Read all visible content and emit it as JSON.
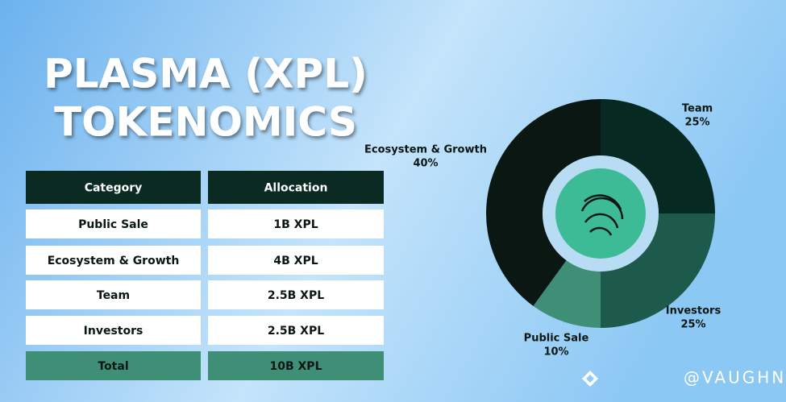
{
  "title": [
    "PLASMA (XPL)",
    "TOKENOMICS"
  ],
  "table": {
    "header": [
      "Category",
      "Allocation"
    ],
    "rows": [
      [
        "Public Sale",
        "1B XPL"
      ],
      [
        "Ecosystem & Growth",
        "4B XPL"
      ],
      [
        "Team",
        "2.5B XPL"
      ],
      [
        "Investors",
        "2.5B XPL"
      ]
    ],
    "total": [
      "Total",
      "10B XPL"
    ]
  },
  "chart_data": {
    "type": "pie",
    "categories": [
      "Team",
      "Investors",
      "Public Sale",
      "Ecosystem & Growth"
    ],
    "values": [
      25,
      25,
      10,
      40
    ],
    "value_labels": [
      "25%",
      "25%",
      "10%",
      "40%"
    ],
    "colors": [
      "#062a22",
      "#1d5a4b",
      "#3f8f76",
      "#0a1713"
    ]
  },
  "watermark": "@VAUGHN_BNB"
}
